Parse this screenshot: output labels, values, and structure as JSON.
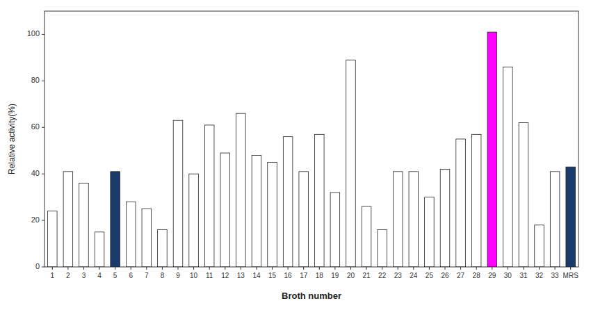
{
  "chart_data": {
    "type": "bar",
    "categories": [
      "1",
      "2",
      "3",
      "4",
      "5",
      "6",
      "7",
      "8",
      "9",
      "10",
      "11",
      "12",
      "13",
      "14",
      "15",
      "16",
      "17",
      "18",
      "19",
      "20",
      "21",
      "22",
      "23",
      "24",
      "25",
      "26",
      "27",
      "28",
      "29",
      "30",
      "31",
      "32",
      "33",
      "MRS"
    ],
    "values": [
      24,
      41,
      36,
      15,
      41,
      28,
      25,
      16,
      63,
      40,
      61,
      49,
      66,
      48,
      45,
      56,
      41,
      57,
      32,
      89,
      26,
      16,
      41,
      41,
      30,
      42,
      55,
      57,
      101,
      86,
      62,
      18,
      41,
      43
    ],
    "colors": [
      "white",
      "white",
      "white",
      "white",
      "#1a3a6b",
      "white",
      "white",
      "white",
      "white",
      "white",
      "white",
      "white",
      "white",
      "white",
      "white",
      "white",
      "white",
      "white",
      "white",
      "white",
      "white",
      "white",
      "white",
      "white",
      "white",
      "white",
      "white",
      "white",
      "#ff00ff",
      "white",
      "white",
      "white",
      "white",
      "#1a3a6b"
    ],
    "ylabel": "Relative activity(%)",
    "xlabel": "Broth number",
    "ylim": [
      0,
      110
    ],
    "yticks": [
      0,
      20,
      40,
      60,
      80,
      100
    ],
    "grid": false
  }
}
